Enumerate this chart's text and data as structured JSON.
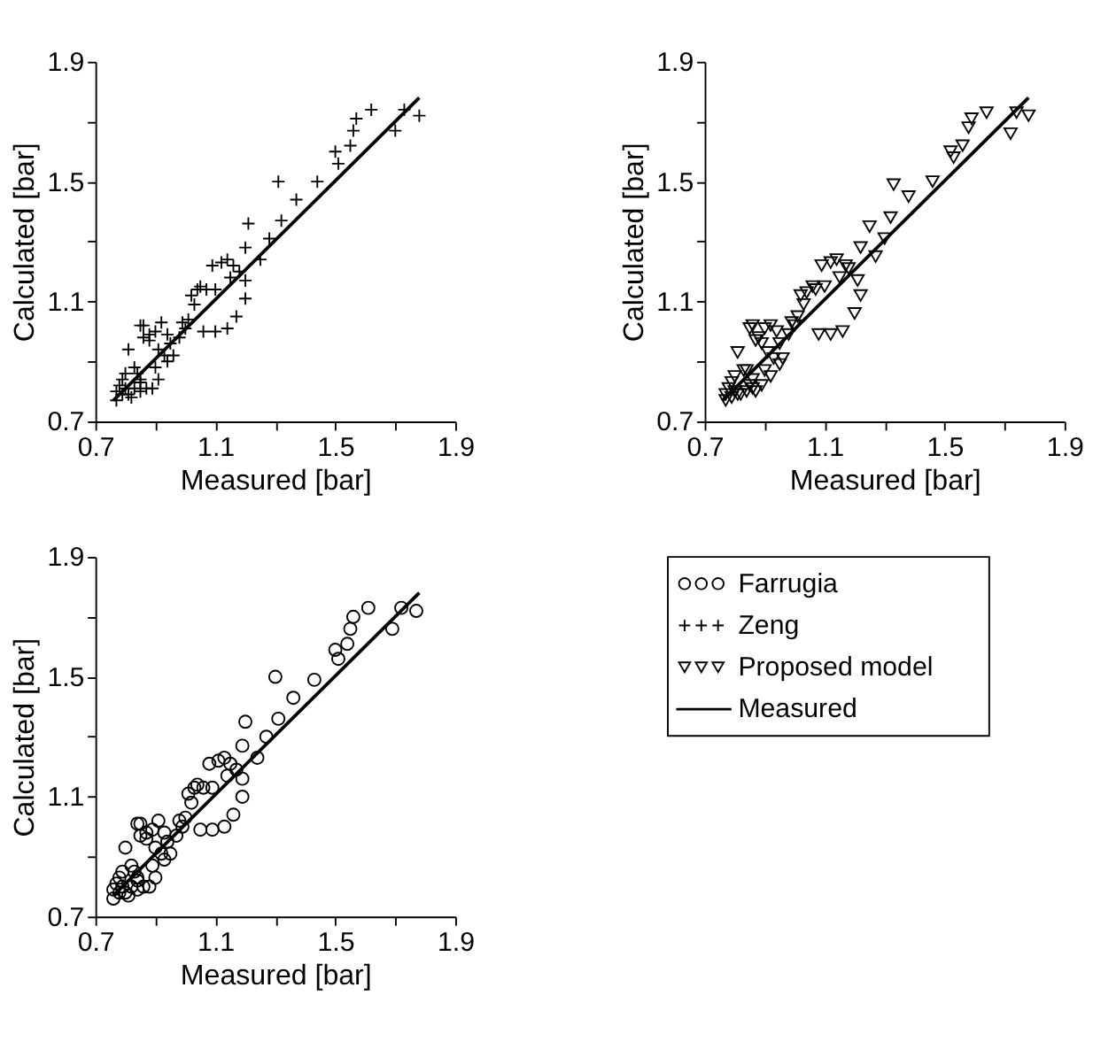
{
  "chart_data": [
    {
      "type": "scatter",
      "xlabel": "Measured [bar]",
      "ylabel": "Calculated [bar]",
      "xlim": [
        0.7,
        1.9
      ],
      "ylim": [
        0.7,
        1.9
      ],
      "xticks": [
        0.7,
        {
          "value": 0.9,
          "label": null
        },
        1.1,
        {
          "value": 1.3,
          "label": null
        },
        1.5,
        {
          "value": 1.7,
          "label": null
        },
        1.9
      ],
      "yticks": [
        0.7,
        {
          "value": 0.9,
          "label": null
        },
        1.1,
        {
          "value": 1.3,
          "label": null
        },
        1.5,
        {
          "value": 1.7,
          "label": null
        },
        1.9
      ],
      "grid": false,
      "legend": "bottom right",
      "series": [
        {
          "name": "Zeng",
          "color": "#000000",
          "marker": "cross",
          "x": [
            1.62,
            1.57,
            1.56,
            1.55,
            1.5,
            1.51,
            1.73,
            1.78,
            1.7,
            1.31,
            1.44,
            1.37,
            1.32,
            1.21,
            1.28,
            1.2,
            1.25,
            1.2,
            1.17,
            1.14,
            1.1,
            1.06,
            1.09,
            1.12,
            1.14,
            1.16,
            1.18,
            1.15,
            1.2,
            1.1,
            1.07,
            1.04,
            1.05,
            1.02,
            1.03,
            1.01,
            0.99,
            1.0,
            0.98,
            0.95,
            0.94,
            0.92,
            0.9,
            0.88,
            0.86,
            0.85,
            0.86,
            0.88,
            0.91,
            0.93,
            0.9,
            0.91,
            0.89,
            0.87,
            0.85,
            0.84,
            0.81,
            0.83,
            0.8,
            0.79,
            0.78,
            0.77,
            0.79,
            0.77,
            0.81,
            0.83,
            0.85,
            0.85,
            0.82,
            0.8,
            0.96,
            0.94
          ],
          "values": [
            1.74,
            1.71,
            1.67,
            1.62,
            1.6,
            1.56,
            1.74,
            1.72,
            1.67,
            1.5,
            1.5,
            1.44,
            1.37,
            1.36,
            1.31,
            1.28,
            1.24,
            1.11,
            1.05,
            1.01,
            1.0,
            1.0,
            1.22,
            1.23,
            1.24,
            1.22,
            1.2,
            1.18,
            1.17,
            1.14,
            1.14,
            1.14,
            1.15,
            1.12,
            1.09,
            1.04,
            1.03,
            1.01,
            0.98,
            0.96,
            0.99,
            1.03,
            1.0,
            0.99,
            1.02,
            1.02,
            0.98,
            0.97,
            0.94,
            0.92,
            0.88,
            0.84,
            0.81,
            0.81,
            0.84,
            0.86,
            0.94,
            0.88,
            0.86,
            0.84,
            0.82,
            0.8,
            0.79,
            0.77,
            0.79,
            0.81,
            0.83,
            0.8,
            0.78,
            0.81,
            0.92,
            0.9
          ]
        },
        {
          "name": "Measured",
          "type": "line",
          "color": "#000000",
          "marker": "none",
          "x": [
            0.76,
            1.78
          ],
          "values": [
            0.77,
            1.78
          ]
        }
      ]
    },
    {
      "type": "scatter",
      "xlabel": "Measured [bar]",
      "ylabel": "Calculated [bar]",
      "xlim": [
        0.7,
        1.9
      ],
      "ylim": [
        0.7,
        1.9
      ],
      "xticks": [
        0.7,
        {
          "value": 0.9,
          "label": null
        },
        1.1,
        {
          "value": 1.3,
          "label": null
        },
        1.5,
        {
          "value": 1.7,
          "label": null
        },
        1.9
      ],
      "yticks": [
        0.7,
        {
          "value": 0.9,
          "label": null
        },
        1.1,
        {
          "value": 1.3,
          "label": null
        },
        1.5,
        {
          "value": 1.7,
          "label": null
        },
        1.9
      ],
      "grid": false,
      "legend": "bottom",
      "series": [
        {
          "name": "Proposed model",
          "color": "#000000",
          "marker": "triangle",
          "x": [
            1.64,
            1.59,
            1.58,
            1.56,
            1.52,
            1.53,
            1.74,
            1.78,
            1.72,
            1.33,
            1.46,
            1.38,
            1.32,
            1.25,
            1.3,
            1.22,
            1.27,
            1.22,
            1.2,
            1.16,
            1.12,
            1.08,
            1.09,
            1.12,
            1.14,
            1.17,
            1.18,
            1.15,
            1.21,
            1.1,
            1.07,
            1.04,
            1.06,
            1.02,
            1.03,
            1.01,
            0.99,
            1.0,
            0.98,
            0.95,
            0.94,
            0.92,
            0.9,
            0.88,
            0.86,
            0.85,
            0.87,
            0.89,
            0.91,
            0.93,
            0.9,
            0.92,
            0.89,
            0.87,
            0.86,
            0.84,
            0.81,
            0.83,
            0.8,
            0.79,
            0.78,
            0.77,
            0.79,
            0.77,
            0.81,
            0.84,
            0.85,
            0.86,
            0.82,
            0.8,
            0.96,
            0.95
          ],
          "values": [
            1.73,
            1.71,
            1.68,
            1.62,
            1.6,
            1.58,
            1.73,
            1.72,
            1.66,
            1.49,
            1.5,
            1.45,
            1.38,
            1.35,
            1.31,
            1.28,
            1.25,
            1.12,
            1.06,
            1.0,
            0.99,
            0.99,
            1.22,
            1.23,
            1.24,
            1.22,
            1.21,
            1.18,
            1.17,
            1.15,
            1.14,
            1.13,
            1.15,
            1.12,
            1.09,
            1.05,
            1.03,
            1.02,
            0.99,
            0.96,
            1.0,
            1.02,
            1.01,
            0.98,
            1.02,
            1.01,
            0.97,
            0.96,
            0.93,
            0.91,
            0.87,
            0.85,
            0.82,
            0.8,
            0.84,
            0.87,
            0.93,
            0.87,
            0.85,
            0.83,
            0.81,
            0.79,
            0.78,
            0.77,
            0.79,
            0.8,
            0.82,
            0.81,
            0.79,
            0.8,
            0.91,
            0.89
          ]
        },
        {
          "name": "Measured",
          "type": "line",
          "color": "#000000",
          "marker": "none",
          "x": [
            0.76,
            1.78
          ],
          "values": [
            0.77,
            1.78
          ]
        }
      ]
    },
    {
      "type": "scatter",
      "xlabel": "Measured [bar]",
      "ylabel": "Calculated [bar]",
      "xlim": [
        0.7,
        1.9
      ],
      "ylim": [
        0.7,
        1.9
      ],
      "xticks": [
        0.7,
        {
          "value": 0.9,
          "label": null
        },
        1.1,
        {
          "value": 1.3,
          "label": null
        },
        1.5,
        {
          "value": 1.7,
          "label": null
        },
        1.9
      ],
      "yticks": [
        0.7,
        {
          "value": 0.9,
          "label": null
        },
        1.1,
        {
          "value": 1.3,
          "label": null
        },
        1.5,
        {
          "value": 1.7,
          "label": null
        },
        1.9
      ],
      "grid": false,
      "legend": "right",
      "series": [
        {
          "name": "Farrugia",
          "color": "#000000",
          "marker": "circle",
          "x": [
            1.61,
            1.56,
            1.55,
            1.54,
            1.5,
            1.51,
            1.72,
            1.77,
            1.69,
            1.3,
            1.43,
            1.36,
            1.31,
            1.2,
            1.27,
            1.19,
            1.24,
            1.19,
            1.16,
            1.13,
            1.09,
            1.05,
            1.08,
            1.11,
            1.13,
            1.15,
            1.17,
            1.14,
            1.19,
            1.09,
            1.06,
            1.03,
            1.04,
            1.01,
            1.02,
            1.0,
            0.98,
            0.99,
            0.97,
            0.94,
            0.93,
            0.91,
            0.89,
            0.87,
            0.85,
            0.84,
            0.85,
            0.87,
            0.9,
            0.92,
            0.89,
            0.9,
            0.88,
            0.86,
            0.84,
            0.83,
            0.8,
            0.82,
            0.79,
            0.78,
            0.77,
            0.76,
            0.78,
            0.76,
            0.8,
            0.82,
            0.84,
            0.84,
            0.81,
            0.79,
            0.95,
            0.93
          ],
          "values": [
            1.73,
            1.7,
            1.66,
            1.61,
            1.59,
            1.56,
            1.73,
            1.72,
            1.66,
            1.5,
            1.49,
            1.43,
            1.36,
            1.35,
            1.3,
            1.27,
            1.23,
            1.1,
            1.04,
            1.0,
            0.99,
            0.99,
            1.21,
            1.22,
            1.23,
            1.21,
            1.19,
            1.17,
            1.16,
            1.13,
            1.13,
            1.13,
            1.14,
            1.11,
            1.08,
            1.03,
            1.02,
            1.0,
            0.97,
            0.95,
            0.98,
            1.02,
            0.99,
            0.98,
            1.01,
            1.01,
            0.97,
            0.96,
            0.93,
            0.91,
            0.87,
            0.83,
            0.8,
            0.8,
            0.83,
            0.85,
            0.93,
            0.87,
            0.85,
            0.83,
            0.81,
            0.79,
            0.78,
            0.76,
            0.78,
            0.8,
            0.82,
            0.79,
            0.77,
            0.8,
            0.91,
            0.89
          ]
        },
        {
          "name": "Measured",
          "type": "line",
          "color": "#000000",
          "marker": "none",
          "x": [
            0.76,
            1.78
          ],
          "values": [
            0.77,
            1.78
          ]
        }
      ]
    }
  ]
}
